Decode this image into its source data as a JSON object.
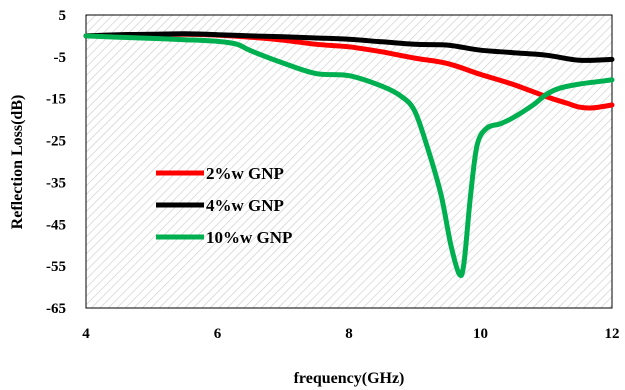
{
  "chart_data": {
    "type": "line",
    "title": "",
    "xlabel": "frequency(GHz)",
    "ylabel": "Reflection Loss(dB)",
    "xlim": [
      4,
      12
    ],
    "ylim": [
      -65,
      5
    ],
    "xticks": [
      4,
      6,
      8,
      10,
      12
    ],
    "yticks": [
      5,
      -5,
      -15,
      -25,
      -35,
      -45,
      -55,
      -65
    ],
    "xtick_labels": [
      "4",
      "6",
      "8",
      "10",
      "12"
    ],
    "ytick_labels": [
      "5",
      "-5",
      "-15",
      "-25",
      "-35",
      "-45",
      "-55",
      "-65"
    ],
    "grid": false,
    "plot_background": "diagonal hatch",
    "legend_position": "center-left",
    "series": [
      {
        "name": "2%w GNP",
        "color": "#ff0000",
        "points": [
          [
            4,
            0
          ],
          [
            4.5,
            0.2
          ],
          [
            5,
            0.3
          ],
          [
            5.5,
            0.4
          ],
          [
            6,
            0.2
          ],
          [
            6.5,
            -0.3
          ],
          [
            7,
            -1
          ],
          [
            7.5,
            -2
          ],
          [
            8,
            -2.6
          ],
          [
            8.5,
            -3.8
          ],
          [
            9,
            -5.3
          ],
          [
            9.5,
            -6.6
          ],
          [
            10,
            -9.2
          ],
          [
            10.5,
            -11.6
          ],
          [
            11,
            -14.5
          ],
          [
            11.3,
            -16
          ],
          [
            11.5,
            -17
          ],
          [
            11.7,
            -17.2
          ],
          [
            12,
            -16.5
          ]
        ]
      },
      {
        "name": "4%w GNP",
        "color": "#000000",
        "points": [
          [
            4,
            0
          ],
          [
            4.5,
            0.3
          ],
          [
            5,
            0.4
          ],
          [
            5.5,
            0.5
          ],
          [
            6,
            0.3
          ],
          [
            6.5,
            0
          ],
          [
            7,
            -0.2
          ],
          [
            7.5,
            -0.5
          ],
          [
            8,
            -0.8
          ],
          [
            8.5,
            -1.4
          ],
          [
            9,
            -2
          ],
          [
            9.5,
            -2.2
          ],
          [
            10,
            -3.4
          ],
          [
            10.5,
            -4
          ],
          [
            11,
            -4.6
          ],
          [
            11.5,
            -5.8
          ],
          [
            12,
            -5.6
          ]
        ]
      },
      {
        "name": "10%w GNP",
        "color": "#00b050",
        "points": [
          [
            4,
            0
          ],
          [
            4.5,
            -0.3
          ],
          [
            5,
            -0.6
          ],
          [
            5.5,
            -0.9
          ],
          [
            6,
            -1.3
          ],
          [
            6.3,
            -2
          ],
          [
            6.5,
            -3.5
          ],
          [
            7,
            -6.5
          ],
          [
            7.5,
            -9
          ],
          [
            8,
            -9.5
          ],
          [
            8.5,
            -12
          ],
          [
            8.8,
            -14.5
          ],
          [
            9.0,
            -18
          ],
          [
            9.2,
            -27
          ],
          [
            9.4,
            -38
          ],
          [
            9.55,
            -50
          ],
          [
            9.68,
            -57
          ],
          [
            9.75,
            -54
          ],
          [
            9.85,
            -38
          ],
          [
            9.95,
            -26
          ],
          [
            10.1,
            -22
          ],
          [
            10.3,
            -21
          ],
          [
            10.5,
            -19.5
          ],
          [
            10.8,
            -16.5
          ],
          [
            11,
            -14
          ],
          [
            11.2,
            -12.5
          ],
          [
            11.5,
            -11.5
          ],
          [
            12,
            -10.5
          ]
        ]
      }
    ]
  }
}
